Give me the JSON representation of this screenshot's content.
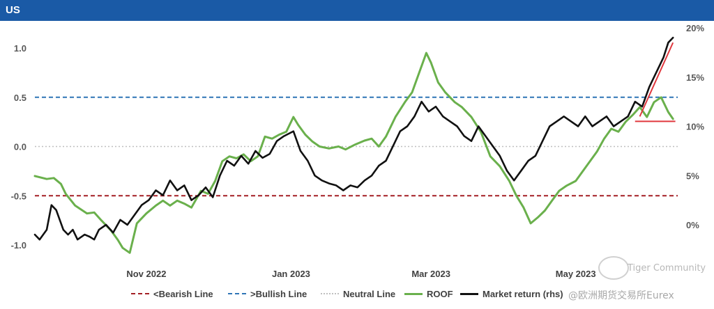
{
  "header": {
    "title": "US"
  },
  "chart_data": {
    "type": "line",
    "title": "US",
    "x_ticks": [
      {
        "label": "Nov 2022",
        "date": "2022-11-01"
      },
      {
        "label": "Jan 2023",
        "date": "2023-01-01"
      },
      {
        "label": "Mar 2023",
        "date": "2023-03-01"
      },
      {
        "label": "May 2023",
        "date": "2023-05-01"
      }
    ],
    "xlim": [
      "2022-09-15",
      "2023-06-13"
    ],
    "y_left": {
      "ylim": [
        -1.2,
        1.2
      ],
      "ticks": [
        "1.0",
        "0.5",
        "0.0",
        "-0.5",
        "-1.0"
      ],
      "tick_values": [
        1.0,
        0.5,
        0.0,
        -0.5,
        -1.0
      ]
    },
    "y_right": {
      "ylim": [
        -2,
        21
      ],
      "ticks": [
        "20%",
        "15%",
        "10%",
        "5%",
        "0%"
      ],
      "tick_values": [
        20,
        15,
        10,
        5,
        0
      ]
    },
    "reference_lines": [
      {
        "name": "<Bearish Line",
        "value": -0.5,
        "color": "#a31f24",
        "style": "dashed"
      },
      {
        "name": ">Bullish Line",
        "value": 0.5,
        "color": "#2e75b6",
        "style": "dashed"
      },
      {
        "name": "Neutral Line",
        "value": 0.0,
        "color": "#bfbfbf",
        "style": "dotted"
      }
    ],
    "series": [
      {
        "name": "ROOF",
        "axis": "left",
        "color": "#6ab04c",
        "points": [
          [
            "2022-09-15",
            -0.3
          ],
          [
            "2022-09-20",
            -0.33
          ],
          [
            "2022-09-23",
            -0.32
          ],
          [
            "2022-09-26",
            -0.38
          ],
          [
            "2022-09-28",
            -0.48
          ],
          [
            "2022-10-02",
            -0.6
          ],
          [
            "2022-10-07",
            -0.68
          ],
          [
            "2022-10-10",
            -0.67
          ],
          [
            "2022-10-13",
            -0.75
          ],
          [
            "2022-10-17",
            -0.85
          ],
          [
            "2022-10-20",
            -0.95
          ],
          [
            "2022-10-22",
            -1.03
          ],
          [
            "2022-10-25",
            -1.08
          ],
          [
            "2022-10-28",
            -0.78
          ],
          [
            "2022-11-01",
            -0.68
          ],
          [
            "2022-11-05",
            -0.6
          ],
          [
            "2022-11-08",
            -0.55
          ],
          [
            "2022-11-11",
            -0.6
          ],
          [
            "2022-11-14",
            -0.55
          ],
          [
            "2022-11-17",
            -0.58
          ],
          [
            "2022-11-20",
            -0.62
          ],
          [
            "2022-11-24",
            -0.45
          ],
          [
            "2022-11-27",
            -0.48
          ],
          [
            "2022-11-30",
            -0.35
          ],
          [
            "2022-12-03",
            -0.15
          ],
          [
            "2022-12-06",
            -0.1
          ],
          [
            "2022-12-09",
            -0.12
          ],
          [
            "2022-12-12",
            -0.08
          ],
          [
            "2022-12-15",
            -0.15
          ],
          [
            "2022-12-18",
            -0.1
          ],
          [
            "2022-12-21",
            0.1
          ],
          [
            "2022-12-24",
            0.08
          ],
          [
            "2022-12-27",
            0.12
          ],
          [
            "2022-12-30",
            0.15
          ],
          [
            "2023-01-02",
            0.3
          ],
          [
            "2023-01-04",
            0.22
          ],
          [
            "2023-01-07",
            0.12
          ],
          [
            "2023-01-10",
            0.05
          ],
          [
            "2023-01-13",
            0.0
          ],
          [
            "2023-01-17",
            -0.02
          ],
          [
            "2023-01-21",
            0.0
          ],
          [
            "2023-01-24",
            -0.03
          ],
          [
            "2023-01-28",
            0.02
          ],
          [
            "2023-02-01",
            0.06
          ],
          [
            "2023-02-04",
            0.08
          ],
          [
            "2023-02-07",
            0.0
          ],
          [
            "2023-02-10",
            0.1
          ],
          [
            "2023-02-14",
            0.3
          ],
          [
            "2023-02-18",
            0.45
          ],
          [
            "2023-02-21",
            0.55
          ],
          [
            "2023-02-24",
            0.75
          ],
          [
            "2023-02-27",
            0.95
          ],
          [
            "2023-03-01",
            0.85
          ],
          [
            "2023-03-04",
            0.65
          ],
          [
            "2023-03-07",
            0.55
          ],
          [
            "2023-03-11",
            0.45
          ],
          [
            "2023-03-14",
            0.4
          ],
          [
            "2023-03-18",
            0.3
          ],
          [
            "2023-03-22",
            0.15
          ],
          [
            "2023-03-26",
            -0.1
          ],
          [
            "2023-03-30",
            -0.2
          ],
          [
            "2023-04-03",
            -0.35
          ],
          [
            "2023-04-06",
            -0.5
          ],
          [
            "2023-04-09",
            -0.62
          ],
          [
            "2023-04-12",
            -0.78
          ],
          [
            "2023-04-15",
            -0.72
          ],
          [
            "2023-04-18",
            -0.65
          ],
          [
            "2023-04-21",
            -0.55
          ],
          [
            "2023-04-24",
            -0.45
          ],
          [
            "2023-04-27",
            -0.4
          ],
          [
            "2023-05-01",
            -0.35
          ],
          [
            "2023-05-04",
            -0.25
          ],
          [
            "2023-05-07",
            -0.15
          ],
          [
            "2023-05-10",
            -0.05
          ],
          [
            "2023-05-13",
            0.08
          ],
          [
            "2023-05-16",
            0.18
          ],
          [
            "2023-05-19",
            0.15
          ],
          [
            "2023-05-22",
            0.25
          ],
          [
            "2023-05-25",
            0.32
          ],
          [
            "2023-05-28",
            0.4
          ],
          [
            "2023-05-31",
            0.3
          ],
          [
            "2023-06-03",
            0.45
          ],
          [
            "2023-06-06",
            0.5
          ],
          [
            "2023-06-09",
            0.35
          ],
          [
            "2023-06-11",
            0.28
          ]
        ]
      },
      {
        "name": "Market return (rhs)",
        "axis": "right",
        "color": "#111111",
        "points": [
          [
            "2022-09-15",
            -1.0
          ],
          [
            "2022-09-17",
            -1.5
          ],
          [
            "2022-09-20",
            -0.5
          ],
          [
            "2022-09-22",
            2.0
          ],
          [
            "2022-09-24",
            1.5
          ],
          [
            "2022-09-27",
            -0.5
          ],
          [
            "2022-09-29",
            -1.0
          ],
          [
            "2022-10-01",
            -0.5
          ],
          [
            "2022-10-03",
            -1.5
          ],
          [
            "2022-10-06",
            -1.0
          ],
          [
            "2022-10-08",
            -1.2
          ],
          [
            "2022-10-10",
            -1.5
          ],
          [
            "2022-10-12",
            -0.5
          ],
          [
            "2022-10-15",
            0.0
          ],
          [
            "2022-10-18",
            -0.8
          ],
          [
            "2022-10-21",
            0.5
          ],
          [
            "2022-10-24",
            0.0
          ],
          [
            "2022-10-27",
            1.0
          ],
          [
            "2022-10-30",
            2.0
          ],
          [
            "2022-11-02",
            2.5
          ],
          [
            "2022-11-05",
            3.5
          ],
          [
            "2022-11-08",
            3.0
          ],
          [
            "2022-11-11",
            4.5
          ],
          [
            "2022-11-14",
            3.5
          ],
          [
            "2022-11-17",
            4.0
          ],
          [
            "2022-11-20",
            2.5
          ],
          [
            "2022-11-23",
            3.0
          ],
          [
            "2022-11-26",
            3.8
          ],
          [
            "2022-11-29",
            2.8
          ],
          [
            "2022-12-02",
            5.0
          ],
          [
            "2022-12-05",
            6.5
          ],
          [
            "2022-12-08",
            6.0
          ],
          [
            "2022-12-11",
            7.0
          ],
          [
            "2022-12-14",
            6.2
          ],
          [
            "2022-12-17",
            7.5
          ],
          [
            "2022-12-20",
            6.8
          ],
          [
            "2022-12-23",
            7.2
          ],
          [
            "2022-12-26",
            8.5
          ],
          [
            "2022-12-29",
            9.0
          ],
          [
            "2023-01-02",
            9.5
          ],
          [
            "2023-01-05",
            7.5
          ],
          [
            "2023-01-08",
            6.5
          ],
          [
            "2023-01-11",
            5.0
          ],
          [
            "2023-01-14",
            4.5
          ],
          [
            "2023-01-17",
            4.2
          ],
          [
            "2023-01-20",
            4.0
          ],
          [
            "2023-01-23",
            3.5
          ],
          [
            "2023-01-26",
            4.0
          ],
          [
            "2023-01-29",
            3.8
          ],
          [
            "2023-02-01",
            4.5
          ],
          [
            "2023-02-04",
            5.0
          ],
          [
            "2023-02-07",
            6.0
          ],
          [
            "2023-02-10",
            6.5
          ],
          [
            "2023-02-13",
            8.0
          ],
          [
            "2023-02-16",
            9.5
          ],
          [
            "2023-02-19",
            10.0
          ],
          [
            "2023-02-22",
            11.0
          ],
          [
            "2023-02-25",
            12.5
          ],
          [
            "2023-02-28",
            11.5
          ],
          [
            "2023-03-03",
            12.0
          ],
          [
            "2023-03-06",
            11.0
          ],
          [
            "2023-03-09",
            10.5
          ],
          [
            "2023-03-12",
            10.0
          ],
          [
            "2023-03-15",
            9.0
          ],
          [
            "2023-03-18",
            8.5
          ],
          [
            "2023-03-21",
            10.0
          ],
          [
            "2023-03-24",
            9.0
          ],
          [
            "2023-03-27",
            8.0
          ],
          [
            "2023-03-30",
            7.0
          ],
          [
            "2023-04-02",
            5.5
          ],
          [
            "2023-04-05",
            4.5
          ],
          [
            "2023-04-08",
            5.5
          ],
          [
            "2023-04-11",
            6.5
          ],
          [
            "2023-04-14",
            7.0
          ],
          [
            "2023-04-17",
            8.5
          ],
          [
            "2023-04-20",
            10.0
          ],
          [
            "2023-04-23",
            10.5
          ],
          [
            "2023-04-26",
            11.0
          ],
          [
            "2023-04-29",
            10.5
          ],
          [
            "2023-05-02",
            10.0
          ],
          [
            "2023-05-05",
            11.0
          ],
          [
            "2023-05-08",
            10.0
          ],
          [
            "2023-05-11",
            10.5
          ],
          [
            "2023-05-14",
            11.0
          ],
          [
            "2023-05-17",
            10.0
          ],
          [
            "2023-05-20",
            10.5
          ],
          [
            "2023-05-23",
            11.0
          ],
          [
            "2023-05-26",
            12.5
          ],
          [
            "2023-05-29",
            12.0
          ],
          [
            "2023-06-01",
            14.0
          ],
          [
            "2023-06-04",
            15.5
          ],
          [
            "2023-06-07",
            17.0
          ],
          [
            "2023-06-09",
            18.5
          ],
          [
            "2023-06-11",
            19.0
          ]
        ]
      }
    ],
    "annotations": [
      {
        "type": "line",
        "color": "#e0383e",
        "from": [
          "2023-05-28",
          11.0
        ],
        "to": [
          "2023-06-11",
          18.5
        ]
      },
      {
        "type": "line",
        "color": "#e0383e",
        "from": [
          "2023-05-26",
          10.5
        ],
        "to": [
          "2023-06-12",
          10.5
        ]
      }
    ],
    "legend": [
      "<Bearish Line",
      ">Bullish Line",
      "Neutral Line",
      "ROOF",
      "Market return (rhs)"
    ],
    "legend_position": "bottom",
    "grid": false
  },
  "watermark": {
    "line1": "Tiger Community",
    "line2": "@欧洲期货交易所Eurex"
  }
}
